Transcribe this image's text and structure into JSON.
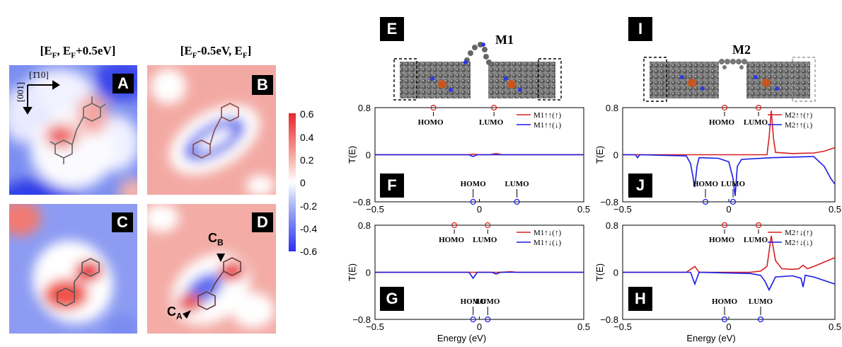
{
  "stm": {
    "col_left_title": "[E",
    "col_left_sub1": "F",
    "col_left_mid": ", E",
    "col_left_sub2": "F",
    "col_left_tail": "+0.5eV]",
    "col_right_title": "[E",
    "col_right_sub1": "F",
    "col_right_mid": "-0.5eV, E",
    "col_right_sub2": "F",
    "col_right_tail": "]",
    "panels": [
      "A",
      "B",
      "C",
      "D"
    ],
    "axis_110": "[1̄10]",
    "axis_001": "[001]",
    "cb_label": "C",
    "cb_sub": "B",
    "ca_label": "C",
    "ca_sub": "A",
    "colorbar_ticks": [
      "0.6",
      "0.4",
      "0.2",
      "0",
      "-0.2",
      "-0.4",
      "-0.6"
    ],
    "colorbar_colors": [
      "#e8262a",
      "#f7b3a8",
      "#ffffff",
      "#a9b5f7",
      "#2b2ff0"
    ]
  },
  "transport": {
    "panel_labels": [
      "E",
      "F",
      "G",
      "I",
      "J",
      "H"
    ],
    "molecule_m1": "M1",
    "molecule_m2": "M2",
    "ylabel": "T(E)",
    "xlabel": "Energy (eV)",
    "homo": "HOMO",
    "lumo": "LUMO",
    "colors": {
      "up": "#d62020",
      "down": "#1a1ae6",
      "axis": "#000000"
    }
  },
  "chart_data": [
    {
      "type": "line",
      "panel": "F",
      "xlim": [
        -0.5,
        0.5
      ],
      "ylim": [
        -0.8,
        0.8
      ],
      "xticks": [
        "−0.5",
        "0",
        "0.5"
      ],
      "yticks": [
        "0.8",
        "0",
        "−0.8"
      ],
      "ylabel": "T(E)",
      "legend": [
        "M1↑↑(↑)",
        "M1↑↑(↓)"
      ],
      "series": [
        {
          "name": "M1↑↑(↑)",
          "x": [
            -0.5,
            -0.05,
            -0.03,
            0.0,
            0.05,
            0.08,
            0.11,
            0.5
          ],
          "y": [
            0,
            0,
            0.01,
            0,
            0,
            0.02,
            0,
            0
          ]
        },
        {
          "name": "M1↑↑(↓)",
          "x": [
            -0.5,
            -0.05,
            -0.03,
            -0.01,
            0.3,
            0.5
          ],
          "y": [
            0,
            0,
            -0.03,
            0,
            0,
            0
          ]
        }
      ],
      "annotations": {
        "homo_up": -0.22,
        "lumo_up": 0.07,
        "homo_down": -0.03,
        "lumo_down": 0.18
      }
    },
    {
      "type": "line",
      "panel": "G",
      "xlim": [
        -0.5,
        0.5
      ],
      "ylim": [
        -0.8,
        0.8
      ],
      "xticks": [
        "−0.5",
        "0",
        "0.5"
      ],
      "yticks": [
        "0.8",
        "0",
        "−0.8"
      ],
      "ylabel": "T(E)",
      "xlabel": "Energy (eV)",
      "legend": [
        "M1↑↓(↑)",
        "M1↑↓(↓)"
      ],
      "series": [
        {
          "name": "M1↑↓(↑)",
          "x": [
            -0.5,
            0.1,
            0.15,
            0.18,
            0.5
          ],
          "y": [
            0,
            0,
            0.01,
            0,
            0
          ]
        },
        {
          "name": "M1↑↓(↓)",
          "x": [
            -0.5,
            -0.05,
            -0.03,
            -0.01,
            0.06,
            0.08,
            0.1,
            0.5
          ],
          "y": [
            0,
            0,
            -0.1,
            0,
            0,
            -0.03,
            0,
            0
          ]
        }
      ],
      "annotations": {
        "homo_up": -0.12,
        "lumo_up": 0.04,
        "homo_down": -0.03,
        "lumo_down": 0.04
      }
    },
    {
      "type": "line",
      "panel": "J",
      "xlim": [
        -0.5,
        0.5
      ],
      "ylim": [
        -0.8,
        0.8
      ],
      "xticks": [
        "−0.5",
        "0",
        "0.5"
      ],
      "yticks": [
        "0.8",
        "0",
        "−0.8"
      ],
      "ylabel": "T(E)",
      "legend": [
        "M2↑↑(↑)",
        "M2↑↑(↓)"
      ],
      "series": [
        {
          "name": "M2↑↑(↑)",
          "x": [
            -0.5,
            0.18,
            0.19,
            0.2,
            0.21,
            0.22,
            0.3,
            0.4,
            0.45,
            0.5
          ],
          "y": [
            0,
            0,
            0.3,
            0.75,
            0.3,
            0.04,
            0.02,
            0.03,
            0.06,
            0.12
          ]
        },
        {
          "name": "M2↑↑(↓)",
          "x": [
            -0.5,
            -0.44,
            -0.43,
            -0.42,
            -0.2,
            -0.18,
            -0.16,
            -0.15,
            -0.14,
            -0.05,
            0.0,
            0.02,
            0.03,
            0.04,
            0.06,
            0.2,
            0.4,
            0.45,
            0.48,
            0.5
          ],
          "y": [
            0,
            0,
            -0.05,
            0,
            -0.02,
            -0.15,
            -0.55,
            -0.2,
            -0.05,
            -0.06,
            -0.12,
            -0.4,
            -0.7,
            -0.2,
            -0.08,
            -0.05,
            -0.03,
            -0.2,
            -0.4,
            -0.5
          ]
        }
      ],
      "annotations": {
        "homo_up": -0.02,
        "lumo_up": 0.14,
        "homo_down": -0.11,
        "lumo_down": 0.02
      }
    },
    {
      "type": "line",
      "panel": "H",
      "xlim": [
        -0.5,
        0.5
      ],
      "ylim": [
        -0.8,
        0.8
      ],
      "xticks": [
        "−0.5",
        "0",
        "0.5"
      ],
      "yticks": [
        "0.8",
        "0",
        "−0.8"
      ],
      "ylabel": "T(E)",
      "xlabel": "Energy (eV)",
      "legend": [
        "M2↑↓(↑)",
        "M2↑↓(↓)"
      ],
      "series": [
        {
          "name": "M2↑↓(↑)",
          "x": [
            -0.5,
            -0.2,
            -0.18,
            -0.16,
            -0.14,
            0.1,
            0.15,
            0.18,
            0.2,
            0.22,
            0.25,
            0.3,
            0.33,
            0.35,
            0.37,
            0.4,
            0.5
          ],
          "y": [
            0,
            0,
            0.05,
            0.1,
            0,
            0,
            0.02,
            0.1,
            0.62,
            0.2,
            0.06,
            0.05,
            0.06,
            0.12,
            0.06,
            0.1,
            0.25
          ]
        },
        {
          "name": "M2↑↓(↓)",
          "x": [
            -0.5,
            -0.18,
            -0.16,
            -0.14,
            0.1,
            0.15,
            0.17,
            0.19,
            0.22,
            0.3,
            0.34,
            0.35,
            0.36,
            0.4,
            0.5
          ],
          "y": [
            0,
            0,
            -0.2,
            0,
            -0.02,
            -0.05,
            -0.15,
            -0.3,
            -0.08,
            -0.06,
            -0.1,
            -0.25,
            -0.05,
            -0.08,
            -0.2
          ]
        }
      ],
      "annotations": {
        "homo_up": -0.02,
        "lumo_up": 0.14,
        "homo_down": -0.02,
        "lumo_down": 0.15
      }
    }
  ]
}
